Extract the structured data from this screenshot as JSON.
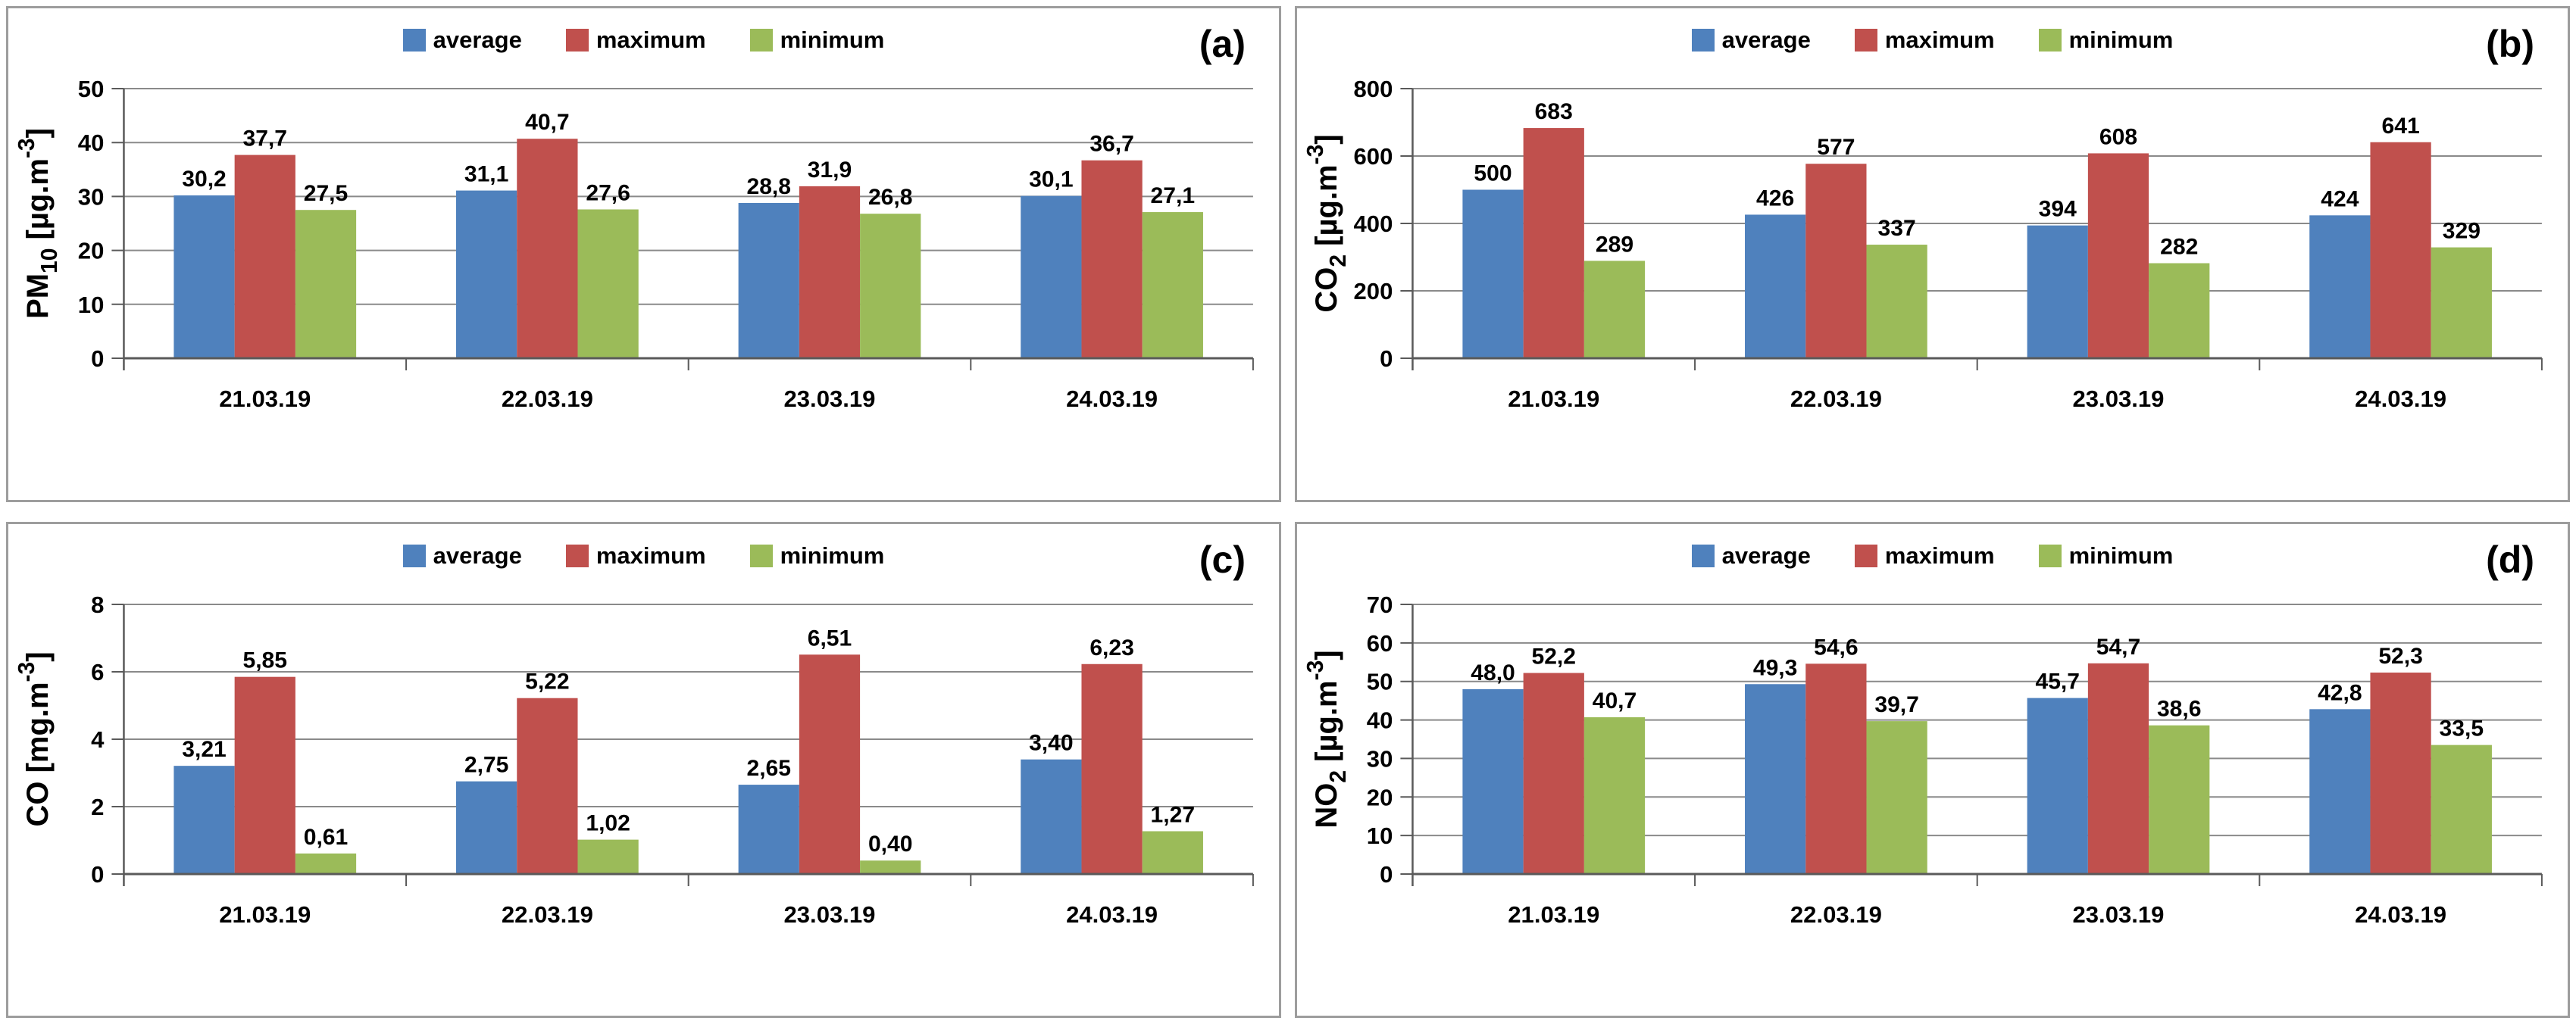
{
  "legend": {
    "items": [
      {
        "label": "average",
        "key": "average"
      },
      {
        "label": "maximum",
        "key": "maximum"
      },
      {
        "label": "minimum",
        "key": "minimum"
      }
    ]
  },
  "colors": {
    "average": "#4F81BD",
    "maximum": "#C0504D",
    "minimum": "#9BBB59",
    "gridline": "#8a8a8a",
    "axis": "#5a5a5a",
    "text": "#000000",
    "panel_border": "#9d9d9d"
  },
  "chart_data": [
    {
      "type": "bar",
      "panel_label": "(a)",
      "ylabel_text": "PM10 [µg.m-3]",
      "ylabel_parts": [
        {
          "t": "PM"
        },
        {
          "t": "10",
          "s": "sub"
        },
        {
          "t": " [µg.m"
        },
        {
          "t": "-3",
          "s": "sup"
        },
        {
          "t": "]"
        }
      ],
      "categories": [
        "21.03.19",
        "22.03.19",
        "23.03.19",
        "24.03.19"
      ],
      "ylim": [
        0,
        50
      ],
      "yticks": [
        0,
        10,
        20,
        30,
        40,
        50
      ],
      "grid": true,
      "legend_position": "top-center",
      "series": [
        {
          "name": "average",
          "values": [
            30.2,
            31.1,
            28.8,
            30.1
          ],
          "labels": [
            "30,2",
            "31,1",
            "28,8",
            "30,1"
          ]
        },
        {
          "name": "maximum",
          "values": [
            37.7,
            40.7,
            31.9,
            36.7
          ],
          "labels": [
            "37,7",
            "40,7",
            "31,9",
            "36,7"
          ]
        },
        {
          "name": "minimum",
          "values": [
            27.5,
            27.6,
            26.8,
            27.1
          ],
          "labels": [
            "27,5",
            "27,6",
            "26,8",
            "27,1"
          ]
        }
      ]
    },
    {
      "type": "bar",
      "panel_label": "(b)",
      "ylabel_text": "CO2 [µg.m-3]",
      "ylabel_parts": [
        {
          "t": "CO"
        },
        {
          "t": "2",
          "s": "sub"
        },
        {
          "t": " [µg.m"
        },
        {
          "t": "-3",
          "s": "sup"
        },
        {
          "t": "]"
        }
      ],
      "categories": [
        "21.03.19",
        "22.03.19",
        "23.03.19",
        "24.03.19"
      ],
      "ylim": [
        0,
        800
      ],
      "yticks": [
        0,
        200,
        400,
        600,
        800
      ],
      "grid": true,
      "legend_position": "top-center",
      "series": [
        {
          "name": "average",
          "values": [
            500,
            426,
            394,
            424
          ],
          "labels": [
            "500",
            "426",
            "394",
            "424"
          ]
        },
        {
          "name": "maximum",
          "values": [
            683,
            577,
            608,
            641
          ],
          "labels": [
            "683",
            "577",
            "608",
            "641"
          ]
        },
        {
          "name": "minimum",
          "values": [
            289,
            337,
            282,
            329
          ],
          "labels": [
            "289",
            "337",
            "282",
            "329"
          ]
        }
      ]
    },
    {
      "type": "bar",
      "panel_label": "(c)",
      "ylabel_text": "CO [mg.m-3]",
      "ylabel_parts": [
        {
          "t": "CO [mg.m"
        },
        {
          "t": "-3",
          "s": "sup"
        },
        {
          "t": "]"
        }
      ],
      "categories": [
        "21.03.19",
        "22.03.19",
        "23.03.19",
        "24.03.19"
      ],
      "ylim": [
        0,
        8
      ],
      "yticks": [
        0,
        2,
        4,
        6,
        8
      ],
      "grid": true,
      "legend_position": "top-center",
      "series": [
        {
          "name": "average",
          "values": [
            3.21,
            2.75,
            2.65,
            3.4
          ],
          "labels": [
            "3,21",
            "2,75",
            "2,65",
            "3,40"
          ]
        },
        {
          "name": "maximum",
          "values": [
            5.85,
            5.22,
            6.51,
            6.23
          ],
          "labels": [
            "5,85",
            "5,22",
            "6,51",
            "6,23"
          ]
        },
        {
          "name": "minimum",
          "values": [
            0.61,
            1.02,
            0.4,
            1.27
          ],
          "labels": [
            "0,61",
            "1,02",
            "0,40",
            "1,27"
          ]
        }
      ]
    },
    {
      "type": "bar",
      "panel_label": "(d)",
      "ylabel_text": "NO2 [µg.m-3]",
      "ylabel_parts": [
        {
          "t": "NO"
        },
        {
          "t": "2",
          "s": "sub"
        },
        {
          "t": " [µg.m"
        },
        {
          "t": "-3",
          "s": "sup"
        },
        {
          "t": "]"
        }
      ],
      "categories": [
        "21.03.19",
        "22.03.19",
        "23.03.19",
        "24.03.19"
      ],
      "ylim": [
        0,
        70
      ],
      "yticks": [
        0,
        10,
        20,
        30,
        40,
        50,
        60,
        70
      ],
      "grid": true,
      "legend_position": "top-center",
      "series": [
        {
          "name": "average",
          "values": [
            48.0,
            49.3,
            45.7,
            42.8
          ],
          "labels": [
            "48,0",
            "49,3",
            "45,7",
            "42,8"
          ]
        },
        {
          "name": "maximum",
          "values": [
            52.2,
            54.6,
            54.7,
            52.3
          ],
          "labels": [
            "52,2",
            "54,6",
            "54,7",
            "52,3"
          ]
        },
        {
          "name": "minimum",
          "values": [
            40.7,
            39.7,
            38.6,
            33.5
          ],
          "labels": [
            "40,7",
            "39,7",
            "38,6",
            "33,5"
          ]
        }
      ]
    }
  ]
}
